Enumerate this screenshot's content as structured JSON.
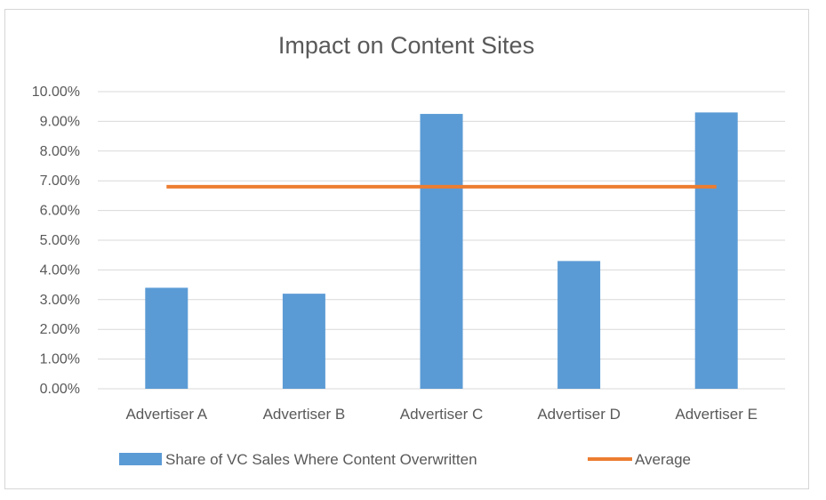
{
  "chart_data": {
    "type": "bar",
    "title": "Impact on Content Sites",
    "categories": [
      "Advertiser A",
      "Advertiser B",
      "Advertiser C",
      "Advertiser D",
      "Advertiser E"
    ],
    "series": [
      {
        "name": "Share of VC Sales Where Content Overwritten",
        "kind": "bar",
        "color": "#5B9BD5",
        "values": [
          3.4,
          3.2,
          9.25,
          4.3,
          9.3
        ]
      },
      {
        "name": "Average",
        "kind": "line",
        "color": "#ED7D31",
        "values": [
          6.8,
          6.8,
          6.8,
          6.8,
          6.8
        ]
      }
    ],
    "ylim": [
      0,
      10
    ],
    "yticks": [
      "0.00%",
      "1.00%",
      "2.00%",
      "3.00%",
      "4.00%",
      "5.00%",
      "6.00%",
      "7.00%",
      "8.00%",
      "9.00%",
      "10.00%"
    ],
    "ylabel": "",
    "xlabel": "",
    "grid": true,
    "legend_position": "bottom"
  }
}
